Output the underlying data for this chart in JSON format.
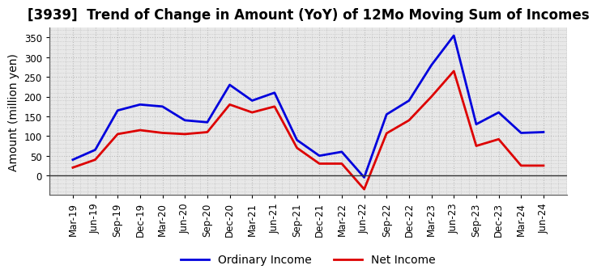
{
  "title": "[3939]  Trend of Change in Amount (YoY) of 12Mo Moving Sum of Incomes",
  "ylabel": "Amount (million yen)",
  "background_color": "#ffffff",
  "plot_bg_color": "#e8e8e8",
  "grid_color": "#bbbbbb",
  "title_fontsize": 12,
  "label_fontsize": 10,
  "tick_fontsize": 8.5,
  "ordinary_income_color": "#0000dd",
  "net_income_color": "#dd0000",
  "line_width": 2.0,
  "x_labels": [
    "Mar-19",
    "Jun-19",
    "Sep-19",
    "Dec-19",
    "Mar-20",
    "Jun-20",
    "Sep-20",
    "Dec-20",
    "Mar-21",
    "Jun-21",
    "Sep-21",
    "Dec-21",
    "Mar-22",
    "Jun-22",
    "Sep-22",
    "Dec-22",
    "Mar-23",
    "Jun-23",
    "Sep-23",
    "Dec-23",
    "Mar-24",
    "Jun-24"
  ],
  "ordinary_income": [
    40,
    65,
    165,
    180,
    175,
    140,
    135,
    230,
    190,
    210,
    90,
    50,
    60,
    -5,
    155,
    190,
    280,
    355,
    130,
    160,
    108,
    110
  ],
  "net_income": [
    20,
    40,
    105,
    115,
    108,
    105,
    110,
    180,
    160,
    175,
    70,
    30,
    30,
    -35,
    107,
    140,
    200,
    265,
    75,
    92,
    25,
    25
  ],
  "ylim": [
    -50,
    375
  ],
  "yticks": [
    0,
    50,
    100,
    150,
    200,
    250,
    300,
    350
  ]
}
